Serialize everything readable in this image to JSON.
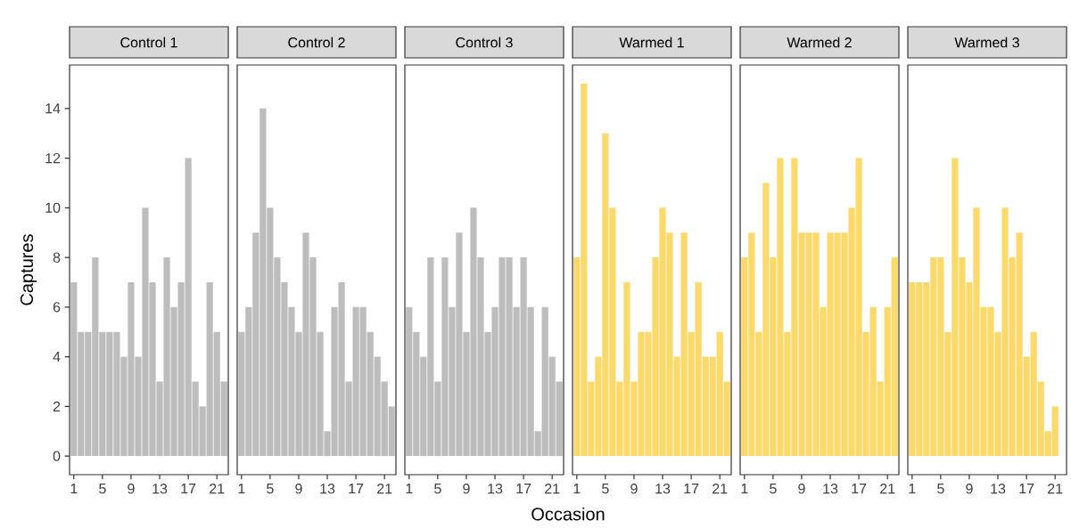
{
  "chart_data": [
    {
      "type": "bar",
      "title": "Control 1",
      "ylabel": "Captures",
      "x": [
        1,
        2,
        3,
        4,
        5,
        6,
        7,
        8,
        9,
        10,
        11,
        12,
        13,
        14,
        15,
        16,
        17,
        18,
        19,
        20,
        21,
        22
      ],
      "values": [
        7,
        5,
        5,
        8,
        5,
        5,
        5,
        4,
        7,
        4,
        10,
        7,
        3,
        8,
        6,
        7,
        12,
        3,
        2,
        7,
        5,
        3
      ],
      "color": "#bdbdbd",
      "xlim": [
        0.4,
        22.6
      ],
      "xticks": [
        1,
        5,
        9,
        13,
        17,
        21
      ],
      "ylim": [
        -0.75,
        15.75
      ],
      "yticks": [
        0,
        2,
        4,
        6,
        8,
        10,
        12,
        14
      ]
    },
    {
      "type": "bar",
      "title": "Control 2",
      "x": [
        1,
        2,
        3,
        4,
        5,
        6,
        7,
        8,
        9,
        10,
        11,
        12,
        13,
        14,
        15,
        16,
        17,
        18,
        19,
        20,
        21,
        22
      ],
      "values": [
        5,
        6,
        9,
        14,
        10,
        8,
        7,
        6,
        5,
        9,
        8,
        5,
        1,
        6,
        7,
        3,
        6,
        6,
        5,
        4,
        3,
        2
      ],
      "color": "#bdbdbd",
      "xlim": [
        0.4,
        22.6
      ],
      "xticks": [
        1,
        5,
        9,
        13,
        17,
        21
      ],
      "ylim": [
        -0.75,
        15.75
      ],
      "tick_labels": "x"
    },
    {
      "type": "bar",
      "title": "Control 3",
      "xlabel": "Occasion",
      "x": [
        1,
        2,
        3,
        4,
        5,
        6,
        7,
        8,
        9,
        10,
        11,
        12,
        13,
        14,
        15,
        16,
        17,
        18,
        19,
        20,
        21,
        22
      ],
      "values": [
        6,
        5,
        4,
        8,
        3,
        8,
        6,
        9,
        5,
        10,
        8,
        5,
        6,
        8,
        8,
        6,
        8,
        6,
        1,
        6,
        4,
        3
      ],
      "color": "#bdbdbd",
      "xlim": [
        0.4,
        22.6
      ],
      "xticks": [
        1,
        5,
        9,
        13,
        17,
        21
      ],
      "ylim": [
        -0.75,
        15.75
      ],
      "tick_labels": "x"
    },
    {
      "type": "bar",
      "title": "Warmed 1",
      "x": [
        1,
        2,
        3,
        4,
        5,
        6,
        7,
        8,
        9,
        10,
        11,
        12,
        13,
        14,
        15,
        16,
        17,
        18,
        19,
        20,
        21,
        22
      ],
      "values": [
        8,
        15,
        3,
        4,
        13,
        10,
        3,
        7,
        3,
        5,
        5,
        8,
        10,
        9,
        4,
        9,
        5,
        7,
        4,
        4,
        5,
        3
      ],
      "color": "#fcd96b",
      "xlim": [
        0.4,
        22.6
      ],
      "xticks": [
        1,
        5,
        9,
        13,
        17,
        21
      ],
      "ylim": [
        -0.75,
        15.75
      ],
      "tick_labels": "x"
    },
    {
      "type": "bar",
      "title": "Warmed 2",
      "x": [
        1,
        2,
        3,
        4,
        5,
        6,
        7,
        8,
        9,
        10,
        11,
        12,
        13,
        14,
        15,
        16,
        17,
        18,
        19,
        20,
        21,
        22
      ],
      "values": [
        8,
        9,
        5,
        11,
        8,
        12,
        5,
        12,
        9,
        9,
        9,
        6,
        9,
        9,
        9,
        10,
        12,
        5,
        6,
        3,
        6,
        8
      ],
      "color": "#fcd96b",
      "xlim": [
        0.4,
        22.6
      ],
      "xticks": [
        1,
        5,
        9,
        13,
        17,
        21
      ],
      "ylim": [
        -0.75,
        15.75
      ],
      "tick_labels": "x"
    },
    {
      "type": "bar",
      "title": "Warmed 3",
      "x": [
        1,
        2,
        3,
        4,
        5,
        6,
        7,
        8,
        9,
        10,
        11,
        12,
        13,
        14,
        15,
        16,
        17,
        18,
        19,
        20,
        21
      ],
      "values": [
        7,
        7,
        7,
        8,
        8,
        5,
        12,
        8,
        7,
        10,
        6,
        6,
        5,
        10,
        8,
        9,
        4,
        5,
        3,
        1,
        2
      ],
      "color": "#fcd96b",
      "xlim": [
        0.4,
        22.6
      ],
      "xticks": [
        1,
        5,
        9,
        13,
        17,
        21
      ],
      "ylim": [
        -0.75,
        15.75
      ],
      "tick_labels": "x"
    }
  ]
}
